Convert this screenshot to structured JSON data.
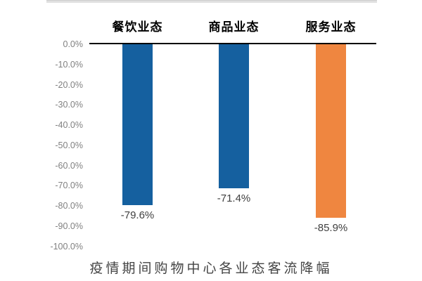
{
  "window": {
    "top_strip_color": "#e0e0e0"
  },
  "chart_data": {
    "type": "bar",
    "title": "疫情期间购物中心各业态客流降幅",
    "categories": [
      "餐饮业态",
      "商品业态",
      "服务业态"
    ],
    "values": [
      -79.6,
      -71.4,
      -85.9
    ],
    "data_labels": [
      "-79.6%",
      "-71.4%",
      "-85.9%"
    ],
    "bar_colors": [
      "#15609F",
      "#15609F",
      "#EF8640"
    ],
    "y_ticks": [
      "0.0%",
      "-10.0%",
      "-20.0%",
      "-30.0%",
      "-40.0%",
      "-50.0%",
      "-60.0%",
      "-70.0%",
      "-80.0%",
      "-90.0%",
      "-100.0%"
    ],
    "y_tick_values": [
      0,
      -10,
      -20,
      -30,
      -40,
      -50,
      -60,
      -70,
      -80,
      -90,
      -100
    ],
    "ylim": [
      -100,
      0
    ],
    "xlabel": "",
    "ylabel": "",
    "grid": false,
    "legend": false,
    "axis_color": "#000000",
    "tick_color": "#808080",
    "data_label_color": "#404040",
    "category_label_color": "#000000",
    "title_color": "#444444"
  }
}
